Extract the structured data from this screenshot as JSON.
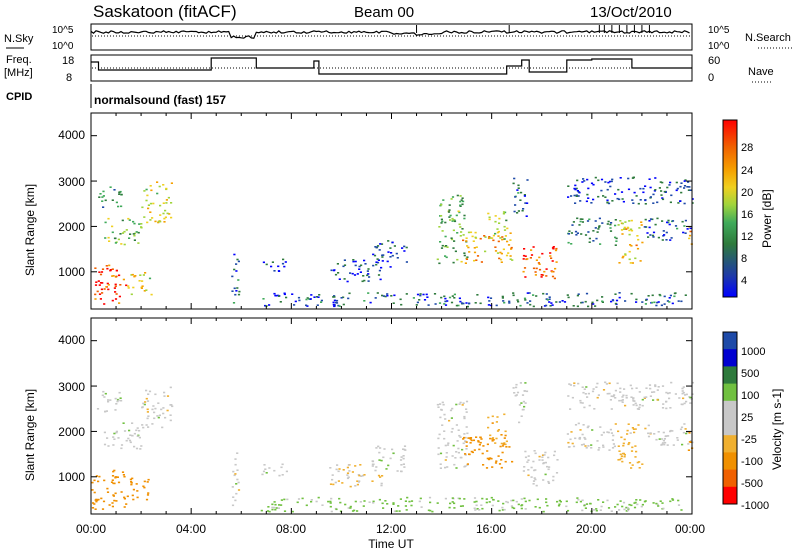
{
  "header": {
    "site": "Saskatoon (fitACF)",
    "beam": "Beam 00",
    "date": "13/Oct/2010"
  },
  "status_panels": {
    "nsky_label": "N.Sky",
    "nsky_ticks": [
      "10^5",
      "10^0"
    ],
    "nsearch_label": "N.Search",
    "nsearch_ticks": [
      "10^5",
      "10^0"
    ],
    "freq_label_line1": "Freq.",
    "freq_label_line2": "[MHz]",
    "freq_ticks": [
      "18",
      "8"
    ],
    "nave_label": "Nave",
    "nave_ticks": [
      "60",
      "0"
    ],
    "cpid_label": "CPID",
    "cpid_value": "normalsound (fast) 157"
  },
  "x_axis": {
    "label": "Time UT",
    "ticks": [
      "00:00",
      "04:00",
      "08:00",
      "12:00",
      "16:00",
      "20:00",
      "00:00"
    ]
  },
  "colors": {
    "power": [
      "#0000ff",
      "#1e4aa8",
      "#2e7a3c",
      "#3faa5a",
      "#9fd43c",
      "#f0d020",
      "#f5a000",
      "#f06000",
      "#ff0000"
    ],
    "velocity": [
      "#ff0000",
      "#f06000",
      "#f09000",
      "#f0b030",
      "#c8c8c8",
      "#c8c8c8",
      "#70c040",
      "#2e7a3c",
      "#1e4aa8",
      "#0000d0"
    ]
  },
  "chart_data": [
    {
      "type": "heatmap",
      "name_ref": "power",
      "ylabel": "Slant Range [km]",
      "yticks": [
        "4000",
        "3000",
        "2000",
        "1000"
      ],
      "ylim": [
        180,
        4500
      ],
      "xlim_hours": [
        0,
        24
      ],
      "colorbar_label": "Power [dB]",
      "colorbar_ticks": [
        "28",
        "24",
        "20",
        "16",
        "12",
        "8",
        "4"
      ],
      "color_range": [
        0,
        30
      ]
    },
    {
      "type": "heatmap",
      "name_ref": "velocity",
      "ylabel": "Slant Range [km]",
      "yticks": [
        "4000",
        "3000",
        "2000",
        "1000"
      ],
      "ylim": [
        180,
        4500
      ],
      "xlim_hours": [
        0,
        24
      ],
      "colorbar_label": "Velocity [m s-1]",
      "colorbar_ticks": [
        "1000",
        "500",
        "100",
        "25",
        "-25",
        "-100",
        "-500",
        "-1000"
      ]
    }
  ],
  "regions": [
    {
      "t0": 0.0,
      "t1": 1.4,
      "r0": 300,
      "r1": 1200,
      "p": 26,
      "v": -300
    },
    {
      "t0": 1.4,
      "t1": 2.4,
      "r0": 500,
      "r1": 1000,
      "p": 18,
      "v": -200
    },
    {
      "t0": 0.5,
      "t1": 2.0,
      "r0": 1600,
      "r1": 2200,
      "p": 14,
      "v": 10
    },
    {
      "t0": 2.0,
      "t1": 3.2,
      "r0": 2100,
      "r1": 3000,
      "p": 17,
      "v": 0
    },
    {
      "t0": 0.2,
      "t1": 1.2,
      "r0": 2400,
      "r1": 2900,
      "p": 9,
      "v": 5
    },
    {
      "t0": 5.6,
      "t1": 5.9,
      "r0": 300,
      "r1": 1600,
      "p": 6,
      "v": 0
    },
    {
      "t0": 6.7,
      "t1": 23.8,
      "r0": 250,
      "r1": 560,
      "p": 6,
      "v": 40
    },
    {
      "t0": 6.8,
      "t1": 7.8,
      "r0": 1000,
      "r1": 1300,
      "p": 5,
      "v": 5
    },
    {
      "t0": 9.5,
      "t1": 11.6,
      "r0": 800,
      "r1": 1300,
      "p": 5,
      "v": -30
    },
    {
      "t0": 11.2,
      "t1": 12.6,
      "r0": 1100,
      "r1": 1700,
      "p": 5,
      "v": 5
    },
    {
      "t0": 13.8,
      "t1": 15.0,
      "r0": 1200,
      "r1": 2700,
      "p": 12,
      "v": 0
    },
    {
      "t0": 14.8,
      "t1": 16.8,
      "r0": 1200,
      "r1": 1900,
      "p": 20,
      "v": -150
    },
    {
      "t0": 15.8,
      "t1": 16.6,
      "r0": 1700,
      "r1": 2400,
      "p": 14,
      "v": -80
    },
    {
      "t0": 17.2,
      "t1": 18.6,
      "r0": 800,
      "r1": 1600,
      "p": 25,
      "v": 0
    },
    {
      "t0": 19.0,
      "t1": 21.0,
      "r0": 1600,
      "r1": 2200,
      "p": 8,
      "v": 0
    },
    {
      "t0": 21.0,
      "t1": 22.0,
      "r0": 1200,
      "r1": 2200,
      "p": 19,
      "v": -50
    },
    {
      "t0": 22.0,
      "t1": 24.0,
      "r0": 1700,
      "r1": 2200,
      "p": 6,
      "v": 0
    },
    {
      "t0": 19.0,
      "t1": 24.0,
      "r0": 2500,
      "r1": 3100,
      "p": 5,
      "v": 0
    },
    {
      "t0": 16.8,
      "t1": 17.4,
      "r0": 2200,
      "r1": 3100,
      "p": 6,
      "v": 5
    },
    {
      "t0": 23.8,
      "t1": 24.0,
      "r0": 1500,
      "r1": 2100,
      "p": 24,
      "v": -200
    }
  ]
}
